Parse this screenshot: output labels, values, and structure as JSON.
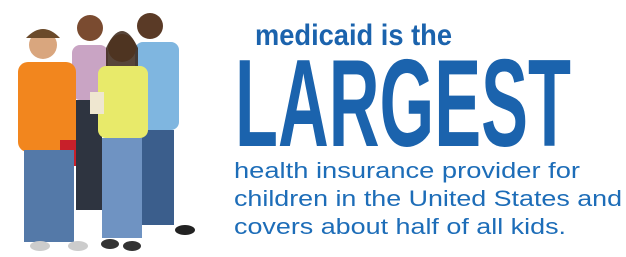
{
  "headline": {
    "lead": "medicaid is the",
    "emphasis": "LARGEST"
  },
  "body": {
    "lines": [
      "health insurance provider for",
      "children in the United States and",
      "covers about half of all kids."
    ]
  }
}
